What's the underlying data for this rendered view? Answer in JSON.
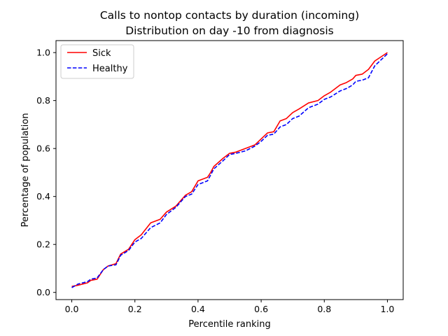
{
  "chart_data": {
    "type": "line",
    "title": "Calls to nontop contacts by duration (incoming)",
    "subtitle": "Distribution on day -10 from diagnosis",
    "xlabel": "Percentile ranking",
    "ylabel": "Percentage of population",
    "xlim": [
      -0.05,
      1.05
    ],
    "ylim": [
      -0.03,
      1.05
    ],
    "xticks": [
      "0.0",
      "0.2",
      "0.4",
      "0.6",
      "0.8",
      "1.0"
    ],
    "yticks": [
      "0.0",
      "0.2",
      "0.4",
      "0.6",
      "0.8",
      "1.0"
    ],
    "grid": false,
    "legend_position": "top-left",
    "series": [
      {
        "name": "Sick",
        "color": "#ff0000",
        "style": "solid",
        "points": [
          [
            0.0,
            0.025
          ],
          [
            0.02,
            0.03
          ],
          [
            0.05,
            0.04
          ],
          [
            0.06,
            0.05
          ],
          [
            0.08,
            0.055
          ],
          [
            0.1,
            0.095
          ],
          [
            0.115,
            0.11
          ],
          [
            0.14,
            0.12
          ],
          [
            0.155,
            0.16
          ],
          [
            0.18,
            0.18
          ],
          [
            0.2,
            0.22
          ],
          [
            0.22,
            0.24
          ],
          [
            0.25,
            0.29
          ],
          [
            0.28,
            0.305
          ],
          [
            0.3,
            0.335
          ],
          [
            0.33,
            0.36
          ],
          [
            0.36,
            0.405
          ],
          [
            0.38,
            0.42
          ],
          [
            0.4,
            0.465
          ],
          [
            0.43,
            0.48
          ],
          [
            0.44,
            0.5
          ],
          [
            0.45,
            0.525
          ],
          [
            0.48,
            0.56
          ],
          [
            0.5,
            0.58
          ],
          [
            0.52,
            0.585
          ],
          [
            0.55,
            0.6
          ],
          [
            0.58,
            0.615
          ],
          [
            0.6,
            0.64
          ],
          [
            0.62,
            0.665
          ],
          [
            0.64,
            0.67
          ],
          [
            0.66,
            0.715
          ],
          [
            0.68,
            0.725
          ],
          [
            0.7,
            0.75
          ],
          [
            0.72,
            0.765
          ],
          [
            0.75,
            0.79
          ],
          [
            0.78,
            0.8
          ],
          [
            0.8,
            0.82
          ],
          [
            0.82,
            0.835
          ],
          [
            0.85,
            0.865
          ],
          [
            0.87,
            0.875
          ],
          [
            0.89,
            0.89
          ],
          [
            0.9,
            0.905
          ],
          [
            0.92,
            0.91
          ],
          [
            0.94,
            0.93
          ],
          [
            0.96,
            0.965
          ],
          [
            1.0,
            1.0
          ]
        ]
      },
      {
        "name": "Healthy",
        "color": "#0000ff",
        "style": "dashed",
        "points": [
          [
            0.0,
            0.02
          ],
          [
            0.02,
            0.035
          ],
          [
            0.05,
            0.045
          ],
          [
            0.06,
            0.055
          ],
          [
            0.08,
            0.06
          ],
          [
            0.1,
            0.095
          ],
          [
            0.115,
            0.11
          ],
          [
            0.14,
            0.115
          ],
          [
            0.155,
            0.155
          ],
          [
            0.18,
            0.175
          ],
          [
            0.2,
            0.21
          ],
          [
            0.22,
            0.225
          ],
          [
            0.25,
            0.27
          ],
          [
            0.28,
            0.29
          ],
          [
            0.3,
            0.325
          ],
          [
            0.33,
            0.355
          ],
          [
            0.36,
            0.4
          ],
          [
            0.38,
            0.41
          ],
          [
            0.4,
            0.45
          ],
          [
            0.43,
            0.465
          ],
          [
            0.44,
            0.49
          ],
          [
            0.45,
            0.515
          ],
          [
            0.48,
            0.55
          ],
          [
            0.5,
            0.575
          ],
          [
            0.52,
            0.58
          ],
          [
            0.55,
            0.59
          ],
          [
            0.58,
            0.61
          ],
          [
            0.6,
            0.63
          ],
          [
            0.62,
            0.655
          ],
          [
            0.64,
            0.66
          ],
          [
            0.66,
            0.69
          ],
          [
            0.68,
            0.7
          ],
          [
            0.7,
            0.725
          ],
          [
            0.72,
            0.735
          ],
          [
            0.75,
            0.77
          ],
          [
            0.78,
            0.785
          ],
          [
            0.8,
            0.805
          ],
          [
            0.82,
            0.815
          ],
          [
            0.85,
            0.84
          ],
          [
            0.87,
            0.85
          ],
          [
            0.89,
            0.865
          ],
          [
            0.9,
            0.88
          ],
          [
            0.92,
            0.885
          ],
          [
            0.94,
            0.895
          ],
          [
            0.96,
            0.945
          ],
          [
            1.0,
            0.995
          ]
        ]
      }
    ]
  }
}
